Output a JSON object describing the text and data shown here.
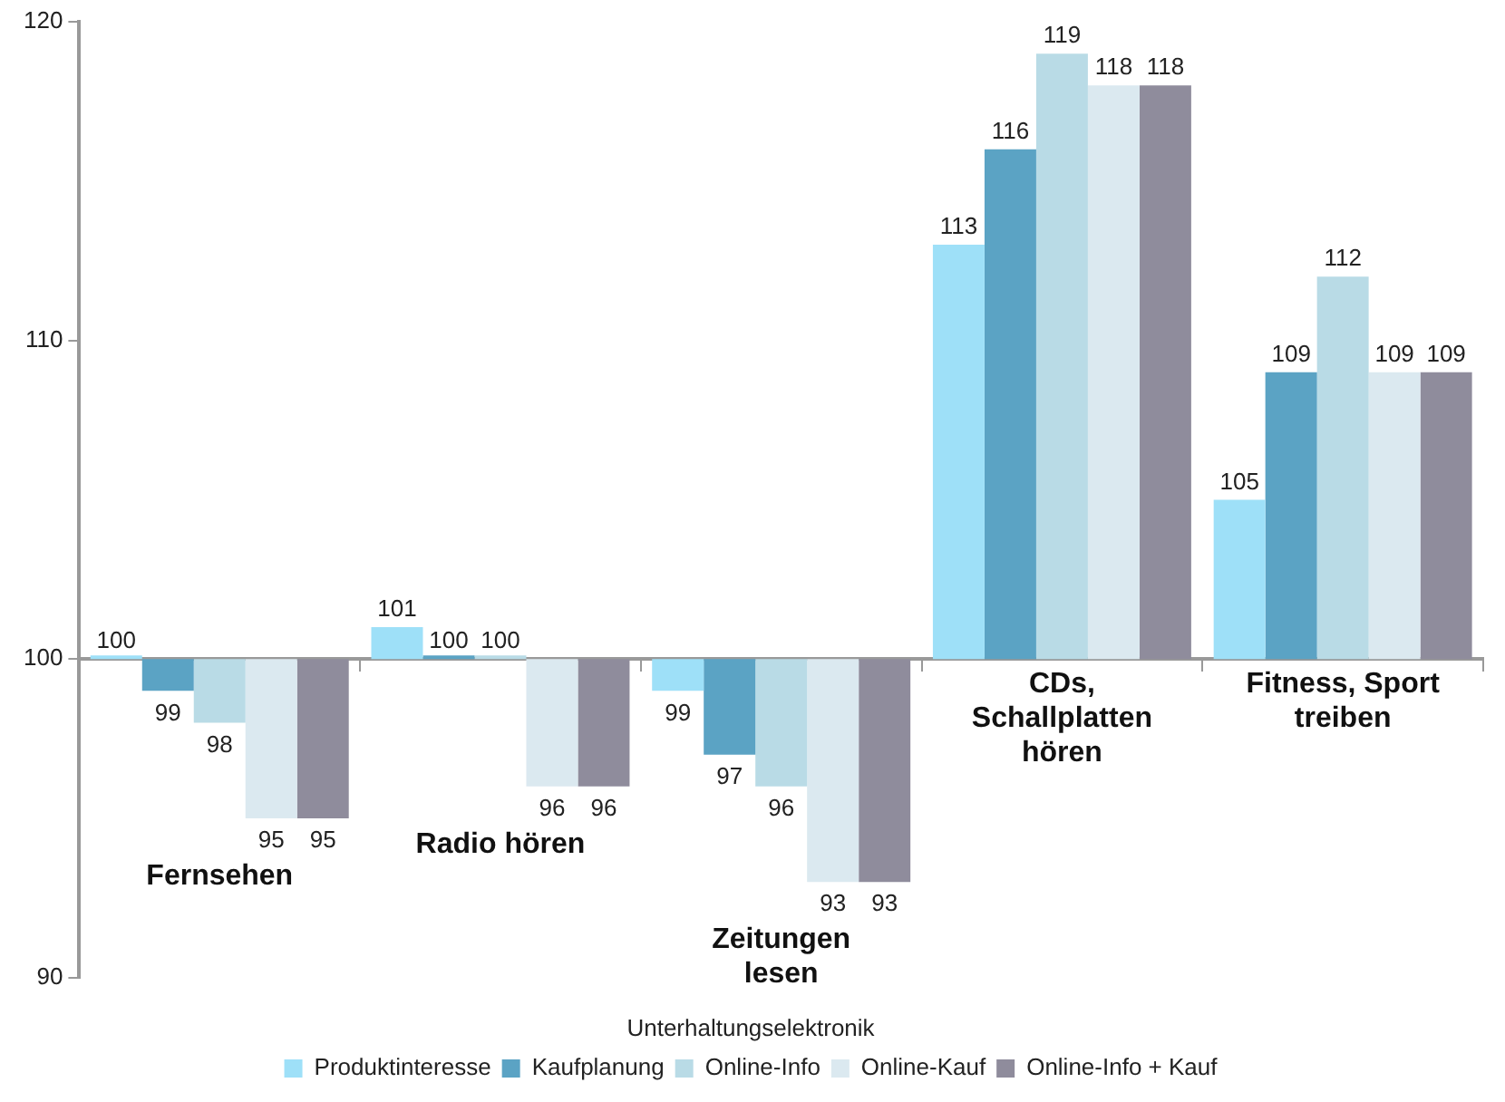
{
  "chart_data": {
    "type": "bar",
    "legend_title": "Unterhaltungselektronik",
    "categories": [
      "Fernsehen",
      "Radio hören",
      "Zeitungen lesen",
      "CDs, Schallplatten hören",
      "Fitness, Sport treiben"
    ],
    "series": [
      {
        "name": "Produktinteresse",
        "color": "#9ee0f8",
        "base": [
          100,
          100,
          100,
          100,
          100
        ],
        "values": [
          0,
          1,
          -1,
          13,
          5
        ],
        "value_labels": [
          "100",
          "101",
          "99",
          "113",
          "105"
        ]
      },
      {
        "name": "Kaufplanung",
        "color": "#5ba3c4",
        "base": [
          100,
          100,
          100,
          100,
          100
        ],
        "values": [
          -1,
          0,
          -3,
          16,
          9
        ],
        "value_labels": [
          "99",
          "100",
          "97",
          "116",
          "109"
        ]
      },
      {
        "name": "Online-Info",
        "color": "#b9dbe6",
        "base": [
          100,
          100,
          100,
          100,
          100
        ],
        "values": [
          -2,
          0,
          -4,
          19,
          12
        ],
        "value_labels": [
          "98",
          "100",
          "96",
          "119",
          "112"
        ]
      },
      {
        "name": "Online-Kauf",
        "color": "#dbe9f0",
        "base": [
          100,
          100,
          100,
          100,
          100
        ],
        "values": [
          -5,
          -4,
          -7,
          18,
          9
        ],
        "value_labels": [
          "95",
          "96",
          "93",
          "118",
          "109"
        ]
      },
      {
        "name": "Online-Info + Kauf",
        "color": "#8f8c9c",
        "base": [
          100,
          100,
          100,
          100,
          100
        ],
        "values": [
          -5,
          -4,
          -7,
          18,
          9
        ],
        "value_labels": [
          "95",
          "96",
          "93",
          "118",
          "109"
        ]
      }
    ],
    "ylim": [
      90,
      120
    ],
    "yticks": [
      90,
      100,
      110,
      120
    ],
    "grid": false,
    "legend": "bottom"
  }
}
